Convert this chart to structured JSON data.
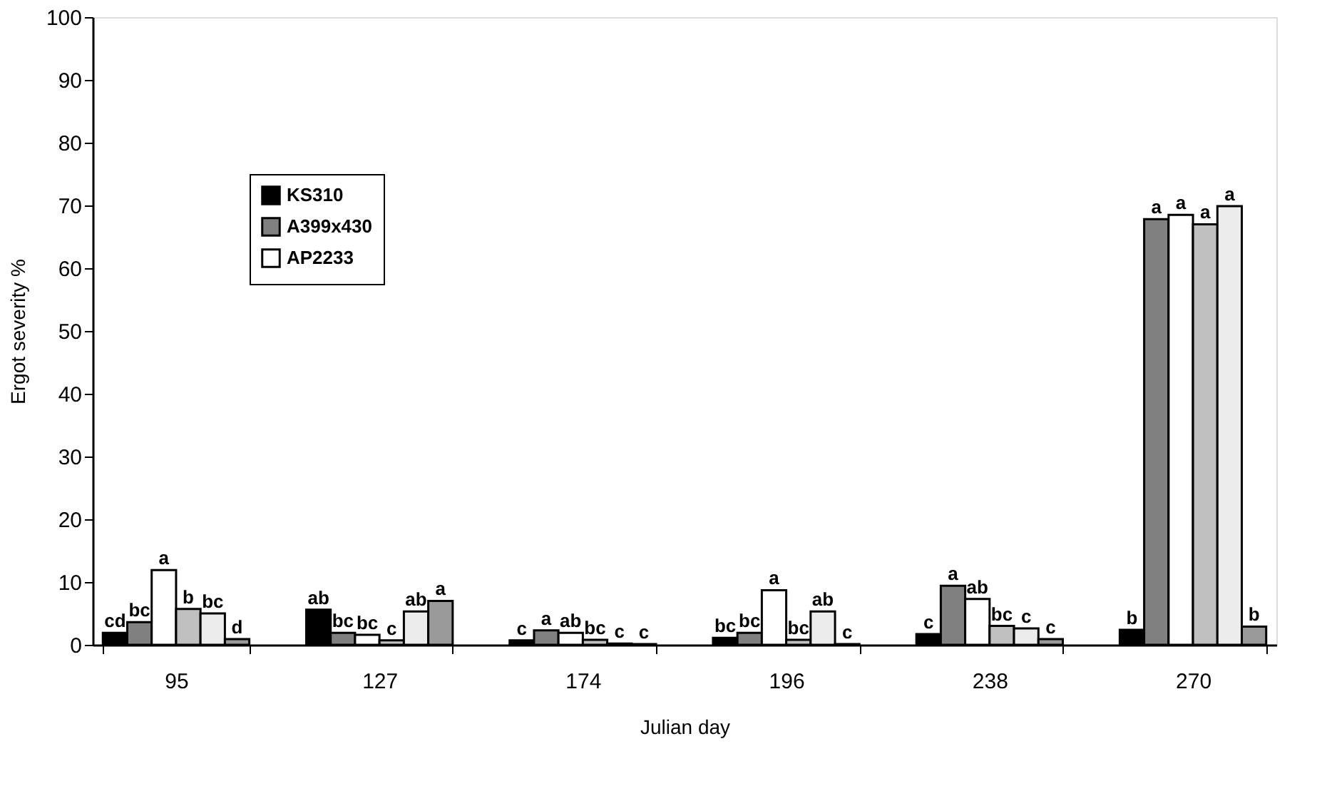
{
  "chart_data": {
    "type": "bar",
    "xlabel": "Julian day",
    "ylabel": "Ergot severity %",
    "categories": [
      "95",
      "127",
      "174",
      "196",
      "238",
      "270"
    ],
    "series": [
      {
        "name": "KS310",
        "color": "#000000",
        "values": [
          1.9,
          5.6,
          0.7,
          1.1,
          1.7,
          2.4
        ],
        "value_labels": [
          "cd",
          "ab",
          "c",
          "bc",
          "c",
          "b"
        ]
      },
      {
        "name": "A399x430",
        "color": "#808080",
        "values": [
          3.6,
          1.9,
          2.3,
          1.9,
          9.4,
          67.8
        ],
        "value_labels": [
          "bc",
          "bc",
          "a",
          "bc",
          "a",
          "a"
        ]
      },
      {
        "name": "AP2233",
        "color": "#ffffff",
        "values": [
          11.9,
          1.6,
          1.9,
          8.7,
          7.3,
          68.5
        ],
        "value_labels": [
          "a",
          "bc",
          "ab",
          "a",
          "ab",
          "a"
        ]
      },
      {
        "color": "#c0c0c0",
        "values": [
          5.7,
          0.7,
          0.8,
          0.8,
          3.0,
          67.0
        ],
        "value_labels": [
          "b",
          "c",
          "bc",
          "bc",
          "bc",
          "a"
        ]
      },
      {
        "color": "#ececec",
        "values": [
          5.0,
          5.3,
          0.2,
          5.3,
          2.6,
          69.9
        ],
        "value_labels": [
          "bc",
          "ab",
          "c",
          "ab",
          "c",
          "a"
        ]
      },
      {
        "color": "#9a9a9a",
        "values": [
          0.9,
          7.0,
          0.1,
          0.1,
          0.9,
          2.9
        ],
        "value_labels": [
          "d",
          "a",
          "c",
          "c",
          "c",
          "b"
        ]
      }
    ],
    "ylim": [
      0,
      100
    ],
    "yticks": [
      0,
      10,
      20,
      30,
      40,
      50,
      60,
      70,
      80,
      90,
      100
    ],
    "grid": false,
    "legend": "top left"
  }
}
